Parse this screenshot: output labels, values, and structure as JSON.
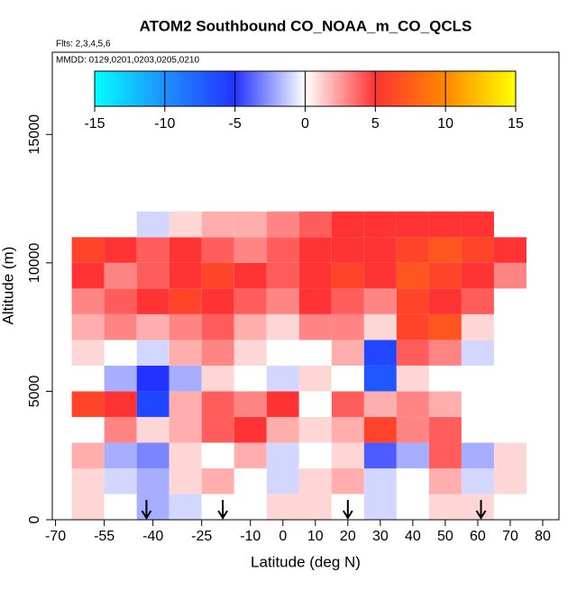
{
  "chart_data": {
    "type": "heatmap",
    "title": "ATOM2 Southbound CO_NOAA_m_CO_QCLS",
    "subtitle": "Flts: 2,3,4,5,6",
    "annotation": "MMDD: 0129,0201,0203,0205,0210",
    "x_label": "Latitude (deg N)",
    "y_label": "Altitude (m)",
    "xlim": [
      -71,
      85
    ],
    "ylim": [
      0,
      18200
    ],
    "xticks": [
      -70,
      -55,
      -40,
      -25,
      -10,
      0,
      10,
      20,
      30,
      40,
      50,
      60,
      70,
      80
    ],
    "yticks": [
      0,
      5000,
      10000,
      15000
    ],
    "x_bins": [
      -65,
      -55,
      -45,
      -35,
      -25,
      -15,
      -5,
      5,
      15,
      25,
      35,
      45,
      55,
      65,
      75
    ],
    "y_bins": [
      0,
      1000,
      2000,
      3000,
      4000,
      5000,
      6000,
      7000,
      8000,
      9000,
      10000,
      11000,
      12000
    ],
    "z": [
      [
        1,
        0,
        -2,
        -1,
        0,
        0,
        1,
        1,
        0,
        -1,
        0,
        1,
        1,
        0
      ],
      [
        1,
        -1,
        -2,
        1,
        2,
        0,
        -1,
        1,
        2,
        -1,
        0,
        2,
        -1,
        1
      ],
      [
        2,
        -2,
        -3,
        1,
        0,
        2,
        -1,
        0,
        1,
        -4,
        -2,
        4,
        -2,
        1
      ],
      [
        0,
        3,
        1,
        2,
        4,
        5,
        2,
        1,
        2,
        6,
        3,
        4,
        0,
        0
      ],
      [
        6,
        5,
        -6,
        2,
        4,
        3,
        5,
        0,
        4,
        2,
        3,
        2,
        0,
        0
      ],
      [
        0,
        -2,
        -5,
        -2,
        1,
        0,
        -1,
        1,
        0,
        -7,
        1,
        0,
        0,
        0
      ],
      [
        1,
        0,
        -1,
        2,
        3,
        1,
        0,
        0,
        2,
        -6,
        4,
        3,
        -1,
        0
      ],
      [
        2,
        3,
        2,
        3,
        4,
        2,
        1,
        3,
        3,
        1,
        6,
        7,
        1,
        0
      ],
      [
        3,
        4,
        5,
        6,
        5,
        4,
        3,
        5,
        4,
        3,
        6,
        5,
        4,
        0
      ],
      [
        5,
        3,
        4,
        5,
        6,
        5,
        4,
        5,
        6,
        5,
        7,
        6,
        5,
        3
      ],
      [
        6,
        5,
        4,
        5,
        4,
        3,
        4,
        5,
        5,
        5,
        6,
        7,
        6,
        5
      ],
      [
        null,
        null,
        -1,
        1,
        2,
        2,
        3,
        4,
        5,
        5,
        5,
        5,
        5,
        null
      ]
    ],
    "colorscale": [
      {
        "value": -15,
        "color": "#00ffff"
      },
      {
        "value": -10,
        "color": "#1e90ff"
      },
      {
        "value": -5,
        "color": "#2233ff"
      },
      {
        "value": 0,
        "color": "#ffffff"
      },
      {
        "value": 5,
        "color": "#ff3333"
      },
      {
        "value": 10,
        "color": "#ff8800"
      },
      {
        "value": 15,
        "color": "#ffff00"
      }
    ],
    "colorbar_ticks": [
      -15,
      -10,
      -5,
      0,
      5,
      10,
      15
    ],
    "arrows": [
      -42,
      -18.5,
      20,
      61
    ]
  }
}
